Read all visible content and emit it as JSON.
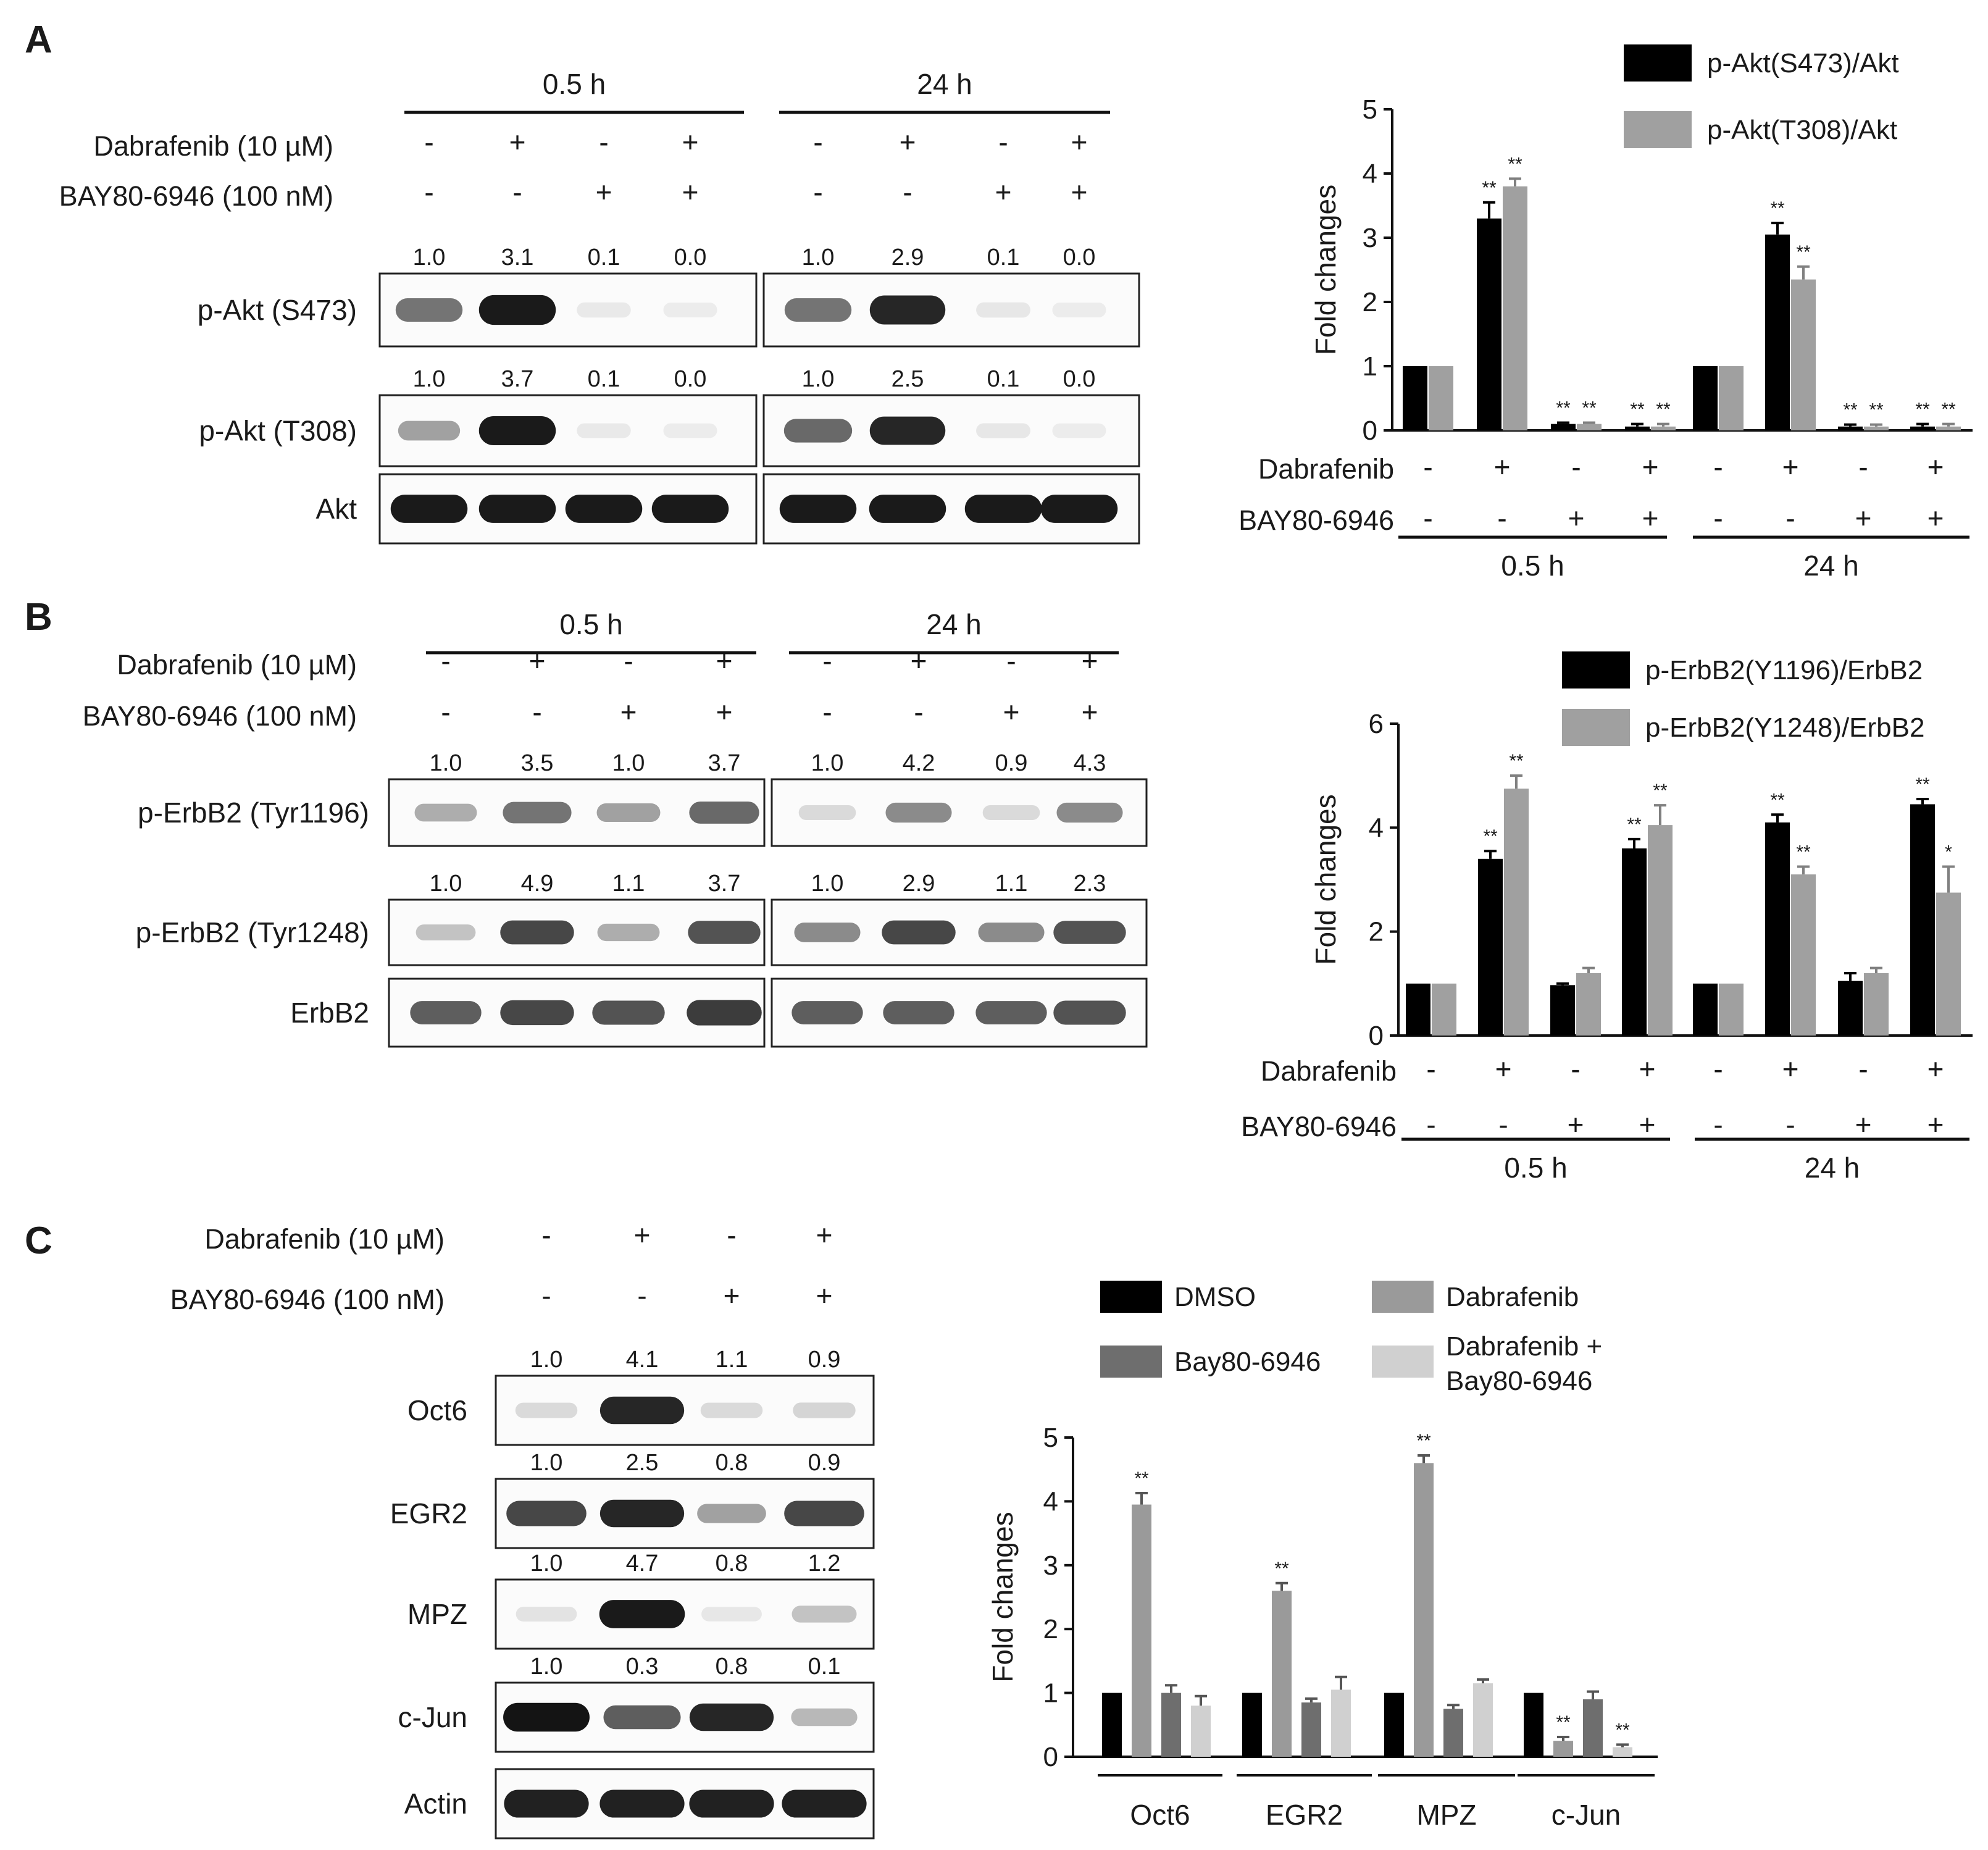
{
  "panels": {
    "A": {
      "letter": "A",
      "blot": {
        "time_labels": [
          "0.5 h",
          "24 h"
        ],
        "treatments": [
          {
            "label": "Dabrafenib (10 µM)",
            "signs": [
              "-",
              "+",
              "-",
              "+",
              "-",
              "+",
              "-",
              "+"
            ]
          },
          {
            "label": "BAY80-6946 (100 nM)",
            "signs": [
              "-",
              "-",
              "+",
              "+",
              "-",
              "-",
              "+",
              "+"
            ]
          }
        ],
        "bands": [
          {
            "label": "p-Akt (S473)",
            "quant": [
              "1.0",
              "3.1",
              "0.1",
              "0.0",
              "1.0",
              "2.9",
              "0.1",
              "0.0"
            ],
            "intensity": [
              0.55,
              0.95,
              0.03,
              0.02,
              0.55,
              0.9,
              0.04,
              0.02
            ]
          },
          {
            "label": "p-Akt (T308)",
            "quant": [
              "1.0",
              "3.7",
              "0.1",
              "0.0",
              "1.0",
              "2.5",
              "0.1",
              "0.0"
            ],
            "intensity": [
              0.35,
              0.95,
              0.03,
              0.02,
              0.6,
              0.9,
              0.04,
              0.02
            ]
          },
          {
            "label": "Akt",
            "quant": null,
            "intensity": [
              0.95,
              0.95,
              0.95,
              0.95,
              0.95,
              0.95,
              0.95,
              0.95
            ]
          }
        ]
      },
      "chart_data": {
        "type": "bar",
        "title": "",
        "ylabel": "Fold changes",
        "xlabel": "",
        "ylim": [
          0,
          5
        ],
        "yticks": [
          0,
          1,
          2,
          3,
          4,
          5
        ],
        "groups": 8,
        "series": [
          {
            "name": "p-Akt(S473)/Akt",
            "color": "#000000",
            "values": [
              1.0,
              3.3,
              0.1,
              0.06,
              1.0,
              3.05,
              0.06,
              0.06
            ],
            "errors": [
              0,
              0.25,
              0.02,
              0.04,
              0,
              0.18,
              0.03,
              0.04
            ],
            "sig": [
              "",
              "**",
              "**",
              "**",
              "",
              "**",
              "**",
              "**"
            ]
          },
          {
            "name": "p-Akt(T308)/Akt",
            "color": "#a0a0a0",
            "values": [
              1.0,
              3.8,
              0.1,
              0.06,
              1.0,
              2.35,
              0.06,
              0.06
            ],
            "errors": [
              0,
              0.12,
              0.02,
              0.04,
              0,
              0.2,
              0.03,
              0.04
            ],
            "sig": [
              "",
              "**",
              "**",
              "**",
              "",
              "**",
              "**",
              "**"
            ]
          }
        ],
        "row_labels": [
          "Dabrafenib",
          "BAY80-6946"
        ],
        "row_signs": [
          [
            "-",
            "+",
            "-",
            "+",
            "-",
            "+",
            "-",
            "+"
          ],
          [
            "-",
            "-",
            "+",
            "+",
            "-",
            "-",
            "+",
            "+"
          ]
        ],
        "time_labels": [
          "0.5 h",
          "24 h"
        ],
        "legend_position": "top-right"
      }
    },
    "B": {
      "letter": "B",
      "blot": {
        "time_labels": [
          "0.5 h",
          "24 h"
        ],
        "treatments": [
          {
            "label": "Dabrafenib (10 µM)",
            "signs": [
              "-",
              "+",
              "-",
              "+",
              "-",
              "+",
              "-",
              "+"
            ]
          },
          {
            "label": "BAY80-6946 (100 nM)",
            "signs": [
              "-",
              "-",
              "+",
              "+",
              "-",
              "-",
              "+",
              "+"
            ]
          }
        ],
        "bands": [
          {
            "label": "p-ErbB2 (Tyr1196)",
            "quant": [
              "1.0",
              "3.5",
              "1.0",
              "3.7",
              "1.0",
              "4.2",
              "0.9",
              "4.3"
            ],
            "intensity": [
              0.3,
              0.55,
              0.35,
              0.6,
              0.1,
              0.45,
              0.1,
              0.45
            ]
          },
          {
            "label": "p-ErbB2 (Tyr1248)",
            "quant": [
              "1.0",
              "4.9",
              "1.1",
              "3.7",
              "1.0",
              "2.9",
              "1.1",
              "2.3"
            ],
            "intensity": [
              0.2,
              0.75,
              0.3,
              0.7,
              0.45,
              0.75,
              0.45,
              0.7
            ]
          },
          {
            "label": "ErbB2",
            "quant": null,
            "intensity": [
              0.65,
              0.75,
              0.7,
              0.8,
              0.65,
              0.65,
              0.65,
              0.7
            ]
          }
        ]
      },
      "chart_data": {
        "type": "bar",
        "title": "",
        "ylabel": "Fold changes",
        "xlabel": "",
        "ylim": [
          0,
          6
        ],
        "yticks": [
          0,
          2,
          4,
          6
        ],
        "groups": 8,
        "series": [
          {
            "name": "p-ErbB2(Y1196)/ErbB2",
            "color": "#000000",
            "values": [
              1.0,
              3.4,
              0.97,
              3.6,
              1.0,
              4.1,
              1.05,
              4.45
            ],
            "errors": [
              0,
              0.15,
              0.03,
              0.18,
              0,
              0.15,
              0.15,
              0.1
            ],
            "sig": [
              "",
              "**",
              "",
              "**",
              "",
              "**",
              "",
              "**"
            ]
          },
          {
            "name": "p-ErbB2(Y1248)/ErbB2",
            "color": "#a0a0a0",
            "values": [
              1.0,
              4.75,
              1.2,
              4.05,
              1.0,
              3.1,
              1.2,
              2.75
            ],
            "errors": [
              0,
              0.25,
              0.1,
              0.38,
              0,
              0.15,
              0.1,
              0.5
            ],
            "sig": [
              "",
              "**",
              "",
              "**",
              "",
              "**",
              "",
              "*"
            ]
          }
        ],
        "row_labels": [
          "Dabrafenib",
          "BAY80-6946"
        ],
        "row_signs": [
          [
            "-",
            "+",
            "-",
            "+",
            "-",
            "+",
            "-",
            "+"
          ],
          [
            "-",
            "-",
            "+",
            "+",
            "-",
            "-",
            "+",
            "+"
          ]
        ],
        "time_labels": [
          "0.5 h",
          "24 h"
        ],
        "legend_position": "top-right"
      }
    },
    "C": {
      "letter": "C",
      "blot": {
        "treatments": [
          {
            "label": "Dabrafenib (10 µM)",
            "signs": [
              "-",
              "+",
              "-",
              "+"
            ]
          },
          {
            "label": "BAY80-6946 (100 nM)",
            "signs": [
              "-",
              "-",
              "+",
              "+"
            ]
          }
        ],
        "bands": [
          {
            "label": "Oct6",
            "quant": [
              "1.0",
              "4.1",
              "1.1",
              "0.9"
            ],
            "intensity": [
              0.1,
              0.9,
              0.1,
              0.12
            ]
          },
          {
            "label": "EGR2",
            "quant": [
              "1.0",
              "2.5",
              "0.8",
              "0.9"
            ],
            "intensity": [
              0.75,
              0.9,
              0.35,
              0.75
            ]
          },
          {
            "label": "MPZ",
            "quant": [
              "1.0",
              "4.7",
              "0.8",
              "1.2"
            ],
            "intensity": [
              0.06,
              0.95,
              0.04,
              0.2
            ]
          },
          {
            "label": "c-Jun",
            "quant": [
              "1.0",
              "0.3",
              "0.8",
              "0.1"
            ],
            "intensity": [
              0.98,
              0.65,
              0.9,
              0.25
            ]
          },
          {
            "label": "Actin",
            "quant": null,
            "intensity": [
              0.92,
              0.92,
              0.92,
              0.92
            ]
          }
        ]
      },
      "chart_data": {
        "type": "bar",
        "title": "",
        "ylabel": "Fold changes",
        "xlabel": "",
        "ylim": [
          0,
          5
        ],
        "yticks": [
          0,
          1,
          2,
          3,
          4,
          5
        ],
        "categories": [
          "Oct6",
          "EGR2",
          "MPZ",
          "c-Jun"
        ],
        "series": [
          {
            "name": "DMSO",
            "color": "#000000",
            "values": [
              1.0,
              1.0,
              1.0,
              1.0
            ],
            "errors": [
              0,
              0,
              0,
              0
            ],
            "sig": [
              "",
              "",
              "",
              ""
            ]
          },
          {
            "name": "Dabrafenib",
            "color": "#9a9a9a",
            "values": [
              3.95,
              2.6,
              4.6,
              0.25
            ],
            "errors": [
              0.18,
              0.12,
              0.12,
              0.06
            ],
            "sig": [
              "**",
              "**",
              "**",
              "**"
            ]
          },
          {
            "name": "Bay80-6946",
            "color": "#6e6e6e",
            "values": [
              1.0,
              0.85,
              0.75,
              0.9
            ],
            "errors": [
              0.12,
              0.06,
              0.06,
              0.12
            ],
            "sig": [
              "",
              "",
              "",
              ""
            ]
          },
          {
            "name": "Dabrafenib + Bay80-6946",
            "color": "#d0d0d0",
            "values": [
              0.8,
              1.05,
              1.15,
              0.15
            ],
            "errors": [
              0.15,
              0.2,
              0.06,
              0.04
            ],
            "sig": [
              "",
              "",
              "",
              "**"
            ]
          }
        ],
        "legend_position": "top"
      }
    }
  }
}
